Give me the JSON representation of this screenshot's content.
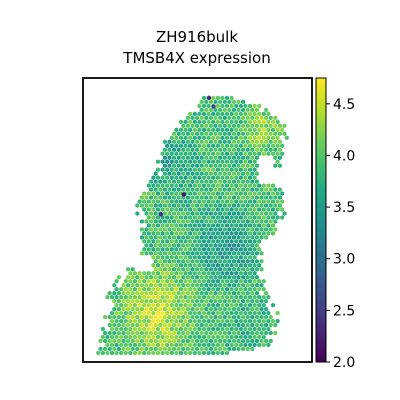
{
  "chart_data": {
    "type": "scatter",
    "title_lines": [
      "ZH916bulk",
      "TMSB4X expression"
    ],
    "xlabel": "",
    "ylabel": "",
    "axes_ticks": false,
    "grid": false,
    "colorbar": {
      "cmap": "viridis",
      "vmin": 2.0,
      "vmax": 4.75,
      "ticks": [
        2.0,
        2.5,
        3.0,
        3.5,
        4.0,
        4.5
      ],
      "tick_labels": [
        "2.0",
        "2.5",
        "3.0",
        "3.5",
        "4.0",
        "4.5"
      ],
      "placement": "right"
    },
    "spot_shape": "hexagon",
    "tissue_outline_rows": [
      {
        "y": 0.06,
        "x": [
          0.52,
          0.62
        ]
      },
      {
        "y": 0.1,
        "x": [
          0.5,
          0.78
        ]
      },
      {
        "y": 0.16,
        "x": [
          0.42,
          0.89
        ]
      },
      {
        "y": 0.22,
        "x": [
          0.34,
          0.89
        ]
      },
      {
        "y": 0.28,
        "x": [
          0.33,
          0.87
        ]
      },
      {
        "y": 0.34,
        "x": [
          0.31,
          0.85
        ]
      },
      {
        "y": 0.4,
        "x": [
          0.25,
          0.87
        ]
      },
      {
        "y": 0.46,
        "x": [
          0.23,
          0.89
        ]
      },
      {
        "y": 0.52,
        "x": [
          0.25,
          0.87
        ]
      },
      {
        "y": 0.58,
        "x": [
          0.25,
          0.79
        ]
      },
      {
        "y": 0.64,
        "x": [
          0.25,
          0.79
        ]
      },
      {
        "y": 0.7,
        "x": [
          0.15,
          0.79
        ]
      },
      {
        "y": 0.76,
        "x": [
          0.11,
          0.8
        ]
      },
      {
        "y": 0.82,
        "x": [
          0.09,
          0.85
        ]
      },
      {
        "y": 0.88,
        "x": [
          0.08,
          0.86
        ]
      },
      {
        "y": 0.94,
        "x": [
          0.07,
          0.82
        ]
      },
      {
        "y": 0.98,
        "x": [
          0.06,
          0.6
        ]
      }
    ],
    "expression_regions": [
      {
        "region": "lower-left",
        "cx": 0.32,
        "cy": 0.82,
        "r": 0.22,
        "value": 4.6
      },
      {
        "region": "upper-right",
        "cx": 0.78,
        "cy": 0.18,
        "r": 0.12,
        "value": 4.35
      },
      {
        "region": "center-right",
        "cx": 0.62,
        "cy": 0.6,
        "r": 0.18,
        "value": 3.4
      },
      {
        "region": "upper-left",
        "cx": 0.4,
        "cy": 0.3,
        "r": 0.14,
        "value": 3.5
      },
      {
        "region": "lower-right",
        "cx": 0.72,
        "cy": 0.86,
        "r": 0.12,
        "value": 3.7
      }
    ],
    "baseline_value": 3.9,
    "low_outliers": [
      {
        "x": 0.55,
        "y": 0.07,
        "value": 2.3
      },
      {
        "x": 0.44,
        "y": 0.41,
        "value": 2.2
      },
      {
        "x": 0.34,
        "y": 0.48,
        "value": 2.4
      },
      {
        "x": 0.57,
        "y": 0.1,
        "value": 2.6
      }
    ]
  }
}
